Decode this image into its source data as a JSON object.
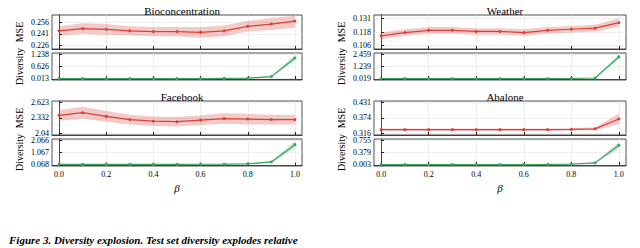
{
  "chart_data": [
    {
      "type": "line",
      "title": "Bioconcentration",
      "y_label": "MSE",
      "tick_labels": "y",
      "grid": true,
      "x": [
        0.0,
        0.1,
        0.2,
        0.3,
        0.4,
        0.5,
        0.6,
        0.7,
        0.8,
        0.9,
        1.0
      ],
      "xlim": [
        -0.03,
        1.03
      ],
      "xticks": [
        {
          "value": 0.0,
          "label": "0.0"
        },
        {
          "value": 0.2,
          "label": "0.2"
        },
        {
          "value": 0.4,
          "label": "0.4"
        },
        {
          "value": 0.6,
          "label": "0.6"
        },
        {
          "value": 0.8,
          "label": "0.8"
        },
        {
          "value": 1.0,
          "label": "1.0"
        }
      ],
      "ylim": [
        0.221,
        0.266
      ],
      "yticks": [
        0.226,
        0.241,
        0.256
      ],
      "series": [
        {
          "color": "#d9403a",
          "marker": "circle",
          "values": [
            0.245,
            0.248,
            0.247,
            0.245,
            0.244,
            0.244,
            0.243,
            0.245,
            0.251,
            0.254,
            0.258
          ],
          "lower": [
            0.239,
            0.241,
            0.24,
            0.239,
            0.238,
            0.238,
            0.236,
            0.238,
            0.244,
            0.246,
            0.249
          ],
          "upper": [
            0.251,
            0.255,
            0.254,
            0.251,
            0.25,
            0.25,
            0.25,
            0.252,
            0.258,
            0.262,
            0.265
          ]
        }
      ]
    },
    {
      "type": "line",
      "y_label": "Diversity",
      "tick_labels": "y",
      "grid": true,
      "x": [
        0.0,
        0.1,
        0.2,
        0.3,
        0.4,
        0.5,
        0.6,
        0.7,
        0.8,
        0.9,
        1.0
      ],
      "xlim": [
        -0.03,
        1.03
      ],
      "xticks": [
        {
          "value": 0.0,
          "label": "0.0"
        },
        {
          "value": 0.2,
          "label": "0.2"
        },
        {
          "value": 0.4,
          "label": "0.4"
        },
        {
          "value": 0.6,
          "label": "0.6"
        },
        {
          "value": 0.8,
          "label": "0.8"
        },
        {
          "value": 1.0,
          "label": "1.0"
        }
      ],
      "ylim": [
        -0.05,
        1.3
      ],
      "yticks": [
        0.013,
        0.626,
        1.238
      ],
      "series": [
        {
          "color": "#3aa55a",
          "marker": "circle",
          "values": [
            0.02,
            0.02,
            0.02,
            0.02,
            0.02,
            0.02,
            0.02,
            0.03,
            0.04,
            0.12,
            1.05
          ],
          "lower": [
            0.015,
            0.015,
            0.015,
            0.015,
            0.015,
            0.015,
            0.015,
            0.02,
            0.03,
            0.09,
            0.9
          ],
          "upper": [
            0.025,
            0.025,
            0.025,
            0.025,
            0.025,
            0.025,
            0.025,
            0.04,
            0.05,
            0.15,
            1.2
          ]
        }
      ]
    },
    {
      "type": "line",
      "title": "Weather",
      "y_label": "MSE",
      "tick_labels": "y",
      "grid": true,
      "x": [
        0.0,
        0.1,
        0.2,
        0.3,
        0.4,
        0.5,
        0.6,
        0.7,
        0.8,
        0.9,
        1.0
      ],
      "xlim": [
        -0.03,
        1.03
      ],
      "xticks": [
        {
          "value": 0.0,
          "label": "0.0"
        },
        {
          "value": 0.2,
          "label": "0.2"
        },
        {
          "value": 0.4,
          "label": "0.4"
        },
        {
          "value": 0.6,
          "label": "0.6"
        },
        {
          "value": 0.8,
          "label": "0.8"
        },
        {
          "value": 1.0,
          "label": "1.0"
        }
      ],
      "ylim": [
        0.103,
        0.134
      ],
      "yticks": [
        0.106,
        0.118,
        0.131
      ],
      "series": [
        {
          "color": "#d9403a",
          "marker": "circle",
          "values": [
            0.115,
            0.118,
            0.12,
            0.12,
            0.119,
            0.119,
            0.118,
            0.12,
            0.121,
            0.122,
            0.127
          ],
          "lower": [
            0.112,
            0.115,
            0.117,
            0.117,
            0.116,
            0.116,
            0.115,
            0.117,
            0.118,
            0.119,
            0.123
          ],
          "upper": [
            0.118,
            0.121,
            0.123,
            0.123,
            0.122,
            0.122,
            0.121,
            0.123,
            0.124,
            0.125,
            0.131
          ]
        }
      ]
    },
    {
      "type": "line",
      "y_label": "Diversity",
      "tick_labels": "y",
      "grid": true,
      "x": [
        0.0,
        0.1,
        0.2,
        0.3,
        0.4,
        0.5,
        0.6,
        0.7,
        0.8,
        0.9,
        1.0
      ],
      "xlim": [
        -0.03,
        1.03
      ],
      "xticks": [
        {
          "value": 0.0,
          "label": "0.0"
        },
        {
          "value": 0.2,
          "label": "0.2"
        },
        {
          "value": 0.4,
          "label": "0.4"
        },
        {
          "value": 0.6,
          "label": "0.6"
        },
        {
          "value": 0.8,
          "label": "0.8"
        },
        {
          "value": 1.0,
          "label": "1.0"
        }
      ],
      "ylim": [
        -0.1,
        2.58
      ],
      "yticks": [
        0.019,
        1.239,
        2.459
      ],
      "series": [
        {
          "color": "#3aa55a",
          "marker": "circle",
          "values": [
            0.05,
            0.05,
            0.05,
            0.05,
            0.05,
            0.05,
            0.05,
            0.05,
            0.06,
            0.1,
            2.2
          ],
          "lower": [
            0.04,
            0.04,
            0.04,
            0.04,
            0.04,
            0.04,
            0.04,
            0.04,
            0.05,
            0.08,
            1.95
          ],
          "upper": [
            0.06,
            0.06,
            0.06,
            0.06,
            0.06,
            0.06,
            0.06,
            0.06,
            0.07,
            0.12,
            2.45
          ]
        }
      ]
    },
    {
      "type": "line",
      "title": "Facebook",
      "y_label": "MSE",
      "tick_labels": "y",
      "grid": true,
      "x": [
        0.0,
        0.1,
        0.2,
        0.3,
        0.4,
        0.5,
        0.6,
        0.7,
        0.8,
        0.9,
        1.0
      ],
      "xlim": [
        -0.03,
        1.03
      ],
      "xticks": [
        {
          "value": 0.0,
          "label": "0.0"
        },
        {
          "value": 0.2,
          "label": "0.2"
        },
        {
          "value": 0.4,
          "label": "0.4"
        },
        {
          "value": 0.6,
          "label": "0.6"
        },
        {
          "value": 0.8,
          "label": "0.8"
        },
        {
          "value": 1.0,
          "label": "1.0"
        }
      ],
      "ylim": [
        2.01,
        2.65
      ],
      "yticks": [
        2.04,
        2.332,
        2.623
      ],
      "series": [
        {
          "color": "#d9403a",
          "marker": "circle",
          "values": [
            2.38,
            2.43,
            2.36,
            2.3,
            2.27,
            2.26,
            2.29,
            2.32,
            2.31,
            2.3,
            2.3
          ],
          "lower": [
            2.28,
            2.32,
            2.26,
            2.21,
            2.18,
            2.17,
            2.2,
            2.22,
            2.21,
            2.21,
            2.21
          ],
          "upper": [
            2.48,
            2.54,
            2.46,
            2.39,
            2.36,
            2.35,
            2.38,
            2.42,
            2.41,
            2.39,
            2.39
          ]
        }
      ]
    },
    {
      "type": "line",
      "y_label": "Diversity",
      "x_label": "β",
      "tick_labels": true,
      "grid": true,
      "x": [
        0.0,
        0.1,
        0.2,
        0.3,
        0.4,
        0.5,
        0.6,
        0.7,
        0.8,
        0.9,
        1.0
      ],
      "xlim": [
        -0.03,
        1.03
      ],
      "xticks": [
        {
          "value": 0.0,
          "label": "0.0"
        },
        {
          "value": 0.2,
          "label": "0.2"
        },
        {
          "value": 0.4,
          "label": "0.4"
        },
        {
          "value": 0.6,
          "label": "0.6"
        },
        {
          "value": 0.8,
          "label": "0.8"
        },
        {
          "value": 1.0,
          "label": "1.0"
        }
      ],
      "ylim": [
        -0.03,
        2.16
      ],
      "yticks": [
        0.068,
        1.067,
        2.066
      ],
      "series": [
        {
          "color": "#3aa55a",
          "marker": "circle",
          "values": [
            0.1,
            0.1,
            0.1,
            0.1,
            0.1,
            0.1,
            0.11,
            0.12,
            0.15,
            0.3,
            1.7
          ],
          "lower": [
            0.08,
            0.08,
            0.08,
            0.08,
            0.08,
            0.08,
            0.09,
            0.1,
            0.12,
            0.24,
            1.4
          ],
          "upper": [
            0.12,
            0.12,
            0.12,
            0.12,
            0.12,
            0.12,
            0.13,
            0.14,
            0.18,
            0.36,
            2.0
          ]
        }
      ]
    },
    {
      "type": "line",
      "title": "Abalone",
      "y_label": "MSE",
      "tick_labels": "y",
      "grid": true,
      "x": [
        0.0,
        0.1,
        0.2,
        0.3,
        0.4,
        0.5,
        0.6,
        0.7,
        0.8,
        0.9,
        1.0
      ],
      "xlim": [
        -0.03,
        1.03
      ],
      "xticks": [
        {
          "value": 0.0,
          "label": "0.0"
        },
        {
          "value": 0.2,
          "label": "0.2"
        },
        {
          "value": 0.4,
          "label": "0.4"
        },
        {
          "value": 0.6,
          "label": "0.6"
        },
        {
          "value": 0.8,
          "label": "0.8"
        },
        {
          "value": 1.0,
          "label": "1.0"
        }
      ],
      "ylim": [
        0.31,
        0.437
      ],
      "yticks": [
        0.316,
        0.374,
        0.431
      ],
      "series": [
        {
          "color": "#d9403a",
          "marker": "circle",
          "values": [
            0.33,
            0.33,
            0.33,
            0.33,
            0.33,
            0.33,
            0.33,
            0.33,
            0.331,
            0.333,
            0.37
          ],
          "lower": [
            0.326,
            0.326,
            0.326,
            0.326,
            0.326,
            0.326,
            0.326,
            0.326,
            0.327,
            0.328,
            0.35
          ],
          "upper": [
            0.334,
            0.334,
            0.334,
            0.334,
            0.334,
            0.334,
            0.334,
            0.334,
            0.335,
            0.338,
            0.39
          ]
        }
      ]
    },
    {
      "type": "line",
      "y_label": "Diversity",
      "x_label": "β",
      "tick_labels": true,
      "grid": true,
      "x": [
        0.0,
        0.1,
        0.2,
        0.3,
        0.4,
        0.5,
        0.6,
        0.7,
        0.8,
        0.9,
        1.0
      ],
      "xlim": [
        -0.03,
        1.03
      ],
      "xticks": [
        {
          "value": 0.0,
          "label": "0.0"
        },
        {
          "value": 0.2,
          "label": "0.2"
        },
        {
          "value": 0.4,
          "label": "0.4"
        },
        {
          "value": 0.6,
          "label": "0.6"
        },
        {
          "value": 0.8,
          "label": "0.8"
        },
        {
          "value": 1.0,
          "label": "1.0"
        }
      ],
      "ylim": [
        -0.035,
        0.79
      ],
      "yticks": [
        0.003,
        0.379,
        0.755
      ],
      "series": [
        {
          "color": "#3aa55a",
          "marker": "circle",
          "values": [
            0.01,
            0.01,
            0.01,
            0.01,
            0.01,
            0.01,
            0.01,
            0.012,
            0.02,
            0.06,
            0.6
          ],
          "lower": [
            0.008,
            0.008,
            0.008,
            0.008,
            0.008,
            0.008,
            0.008,
            0.01,
            0.015,
            0.045,
            0.5
          ],
          "upper": [
            0.012,
            0.012,
            0.012,
            0.012,
            0.012,
            0.012,
            0.012,
            0.014,
            0.025,
            0.075,
            0.7
          ]
        }
      ]
    }
  ],
  "caption": {
    "label": "Figure 3.",
    "title": "Diversity explosion.",
    "text": "Test set diversity explodes relative"
  }
}
